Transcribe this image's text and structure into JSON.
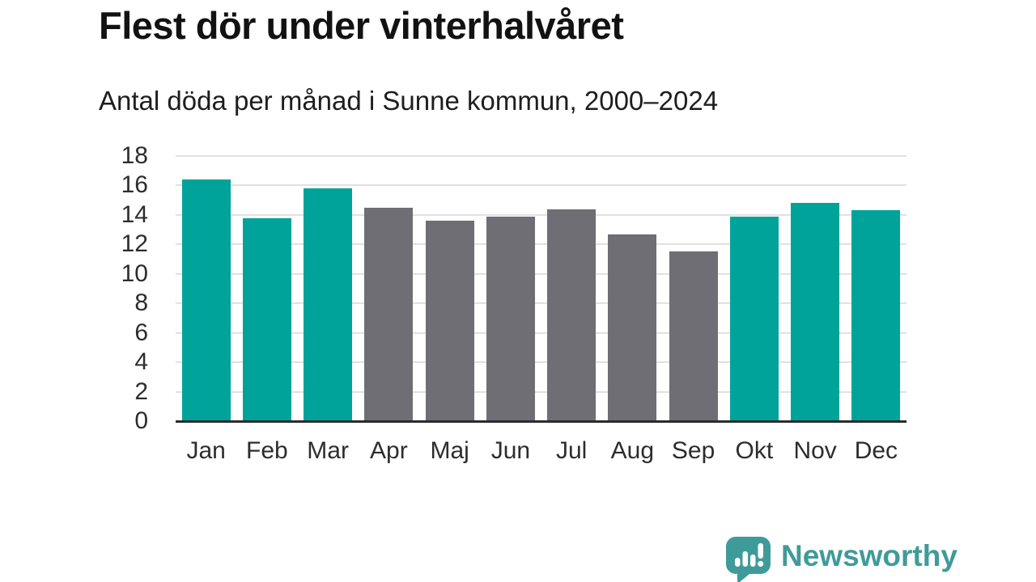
{
  "header": {
    "title": "Flest dör under vinterhalvåret",
    "subtitle": "Antal döda per månad i Sunne kommun, 2000–2024"
  },
  "chart_data": {
    "type": "bar",
    "title": "Flest dör under vinterhalvåret",
    "subtitle": "Antal döda per månad i Sunne kommun, 2000–2024",
    "categories": [
      "Jan",
      "Feb",
      "Mar",
      "Apr",
      "Maj",
      "Jun",
      "Jul",
      "Aug",
      "Sep",
      "Okt",
      "Nov",
      "Dec"
    ],
    "values": [
      16.4,
      13.8,
      15.8,
      14.5,
      13.6,
      13.9,
      14.4,
      12.7,
      11.5,
      13.9,
      14.8,
      14.3
    ],
    "bar_color_keys": [
      "teal",
      "teal",
      "teal",
      "gray",
      "gray",
      "gray",
      "gray",
      "gray",
      "gray",
      "teal",
      "teal",
      "teal"
    ],
    "colors": {
      "teal": "#00a39a",
      "gray": "#6e6e74"
    },
    "xlabel": "",
    "ylabel": "",
    "ylim": [
      0,
      18
    ],
    "yticks": [
      0,
      2,
      4,
      6,
      8,
      10,
      12,
      14,
      16,
      18
    ],
    "grid": "horizontal-light",
    "legend": "none",
    "note": "teal bars = winter half-year months, gray bars = summer half-year months"
  },
  "footer": {
    "brand": "Newsworthy",
    "brand_color": "#3f9b99",
    "logo_icon": "bar-chart-speech-bubble-icon"
  }
}
